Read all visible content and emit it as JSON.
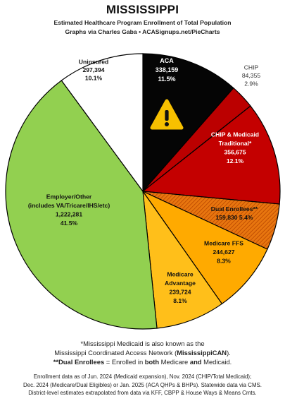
{
  "header": {
    "title": "MISSISSIPPI",
    "subtitle_line1": "Estimated Healthcare Program Enrollment of Total Population",
    "subtitle_line2": "Graphs via Charles Gaba  •  ACASignups.net/PieCharts"
  },
  "chart_data": {
    "type": "pie",
    "title": "MISSISSIPPI",
    "start": "top",
    "direction": "clockwise",
    "slices": [
      {
        "name": "ACA",
        "value": 338159,
        "value_label": "338,159",
        "pct": "11.5%",
        "color": "#050505",
        "label_color": "#ffffff",
        "icon": "warning-icon"
      },
      {
        "name": "CHIP",
        "value": 84355,
        "value_label": "84,355",
        "pct": "2.9%",
        "color": "#bb0000",
        "label_color": "#333333",
        "outside": true
      },
      {
        "name": "CHIP & Medicaid Traditional*",
        "value": 356675,
        "value_label": "356,675",
        "pct": "12.1%",
        "color": "#c40000",
        "label_color": "#ffffff"
      },
      {
        "name": "Dual Enrollees**",
        "value": 159830,
        "value_label": "159,830",
        "pct": "5.4%",
        "color": "#e26a10",
        "label_color": "#111111",
        "hatched": true
      },
      {
        "name": "Medicare FFS",
        "value": 244627,
        "value_label": "244,627",
        "pct": "8.3%",
        "color": "#ffaa00",
        "label_color": "#111111"
      },
      {
        "name": "Medicare Advantage",
        "value": 239724,
        "value_label": "239,724",
        "pct": "8.1%",
        "color": "#ffbf1a",
        "label_color": "#111111"
      },
      {
        "name": "Employer/Other (includes VA/Tricare/IHS/etc)",
        "value": 1222281,
        "value_label": "1,222,281",
        "pct": "41.5%",
        "color": "#92d050",
        "label_color": "#111111"
      },
      {
        "name": "Uninsured",
        "value": 297394,
        "value_label": "297,394",
        "pct": "10.1%",
        "color": "#ffffff",
        "label_color": "#111111"
      }
    ]
  },
  "footnotes": {
    "line1": "*Mississippi Medicaid is also known as the",
    "line2_pre": "Mississippi Coordinated Access Network (",
    "line2_bold": "MississippiCAN",
    "line2_post": ").",
    "line3_bold1": "**Dual Enrollees",
    "line3_mid": " = Enrolled in ",
    "line3_bold2": "both",
    "line3_mid2": " Medicare ",
    "line3_bold3": "and",
    "line3_post": " Medicaid."
  },
  "enrollment_note": {
    "line1": "Enrollment data as of Jun. 2024 (Medicaid expansion), Nov. 2024 (CHIP/Total Medicaid);",
    "line2": "Dec. 2024 (Medicare/Dual Eligibles) or Jan. 2025 (ACA QHPs & BHPs). Statewide data via CMS.",
    "line3": "District-level estimates extrapolated from data via KFF, CBPP & House Ways & Means Cmts."
  }
}
